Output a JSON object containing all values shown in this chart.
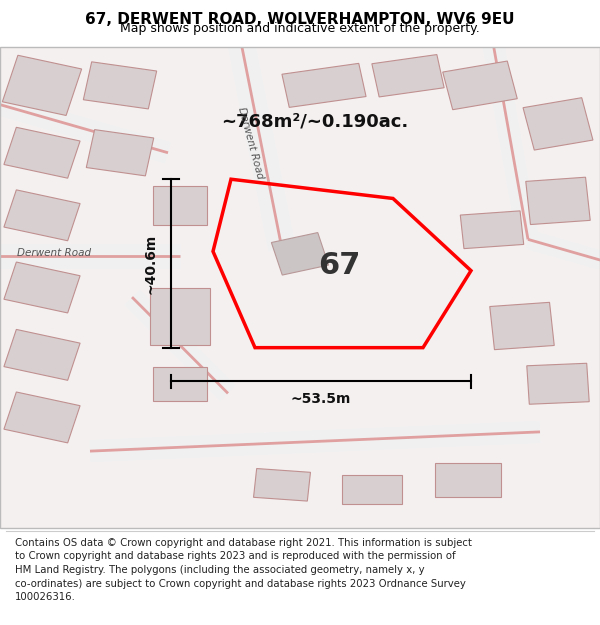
{
  "title": "67, DERWENT ROAD, WOLVERHAMPTON, WV6 9EU",
  "subtitle": "Map shows position and indicative extent of the property.",
  "footer_text": "Contains OS data © Crown copyright and database right 2021. This information is subject\nto Crown copyright and database rights 2023 and is reproduced with the permission of\nHM Land Registry. The polygons (including the associated geometry, namely x, y\nco-ordinates) are subject to Crown copyright and database rights 2023 Ordnance Survey\n100026316.",
  "area_label": "~768m²/~0.190ac.",
  "width_label": "~53.5m",
  "height_label": "~40.6m",
  "plot_number": "67",
  "background_color": "#ffffff",
  "red_color": "#ff0000",
  "title_fontsize": 11,
  "subtitle_fontsize": 9,
  "footer_fontsize": 7.3,
  "road_label_1": "Derwent Road",
  "road_label_2": "Derwent Road"
}
